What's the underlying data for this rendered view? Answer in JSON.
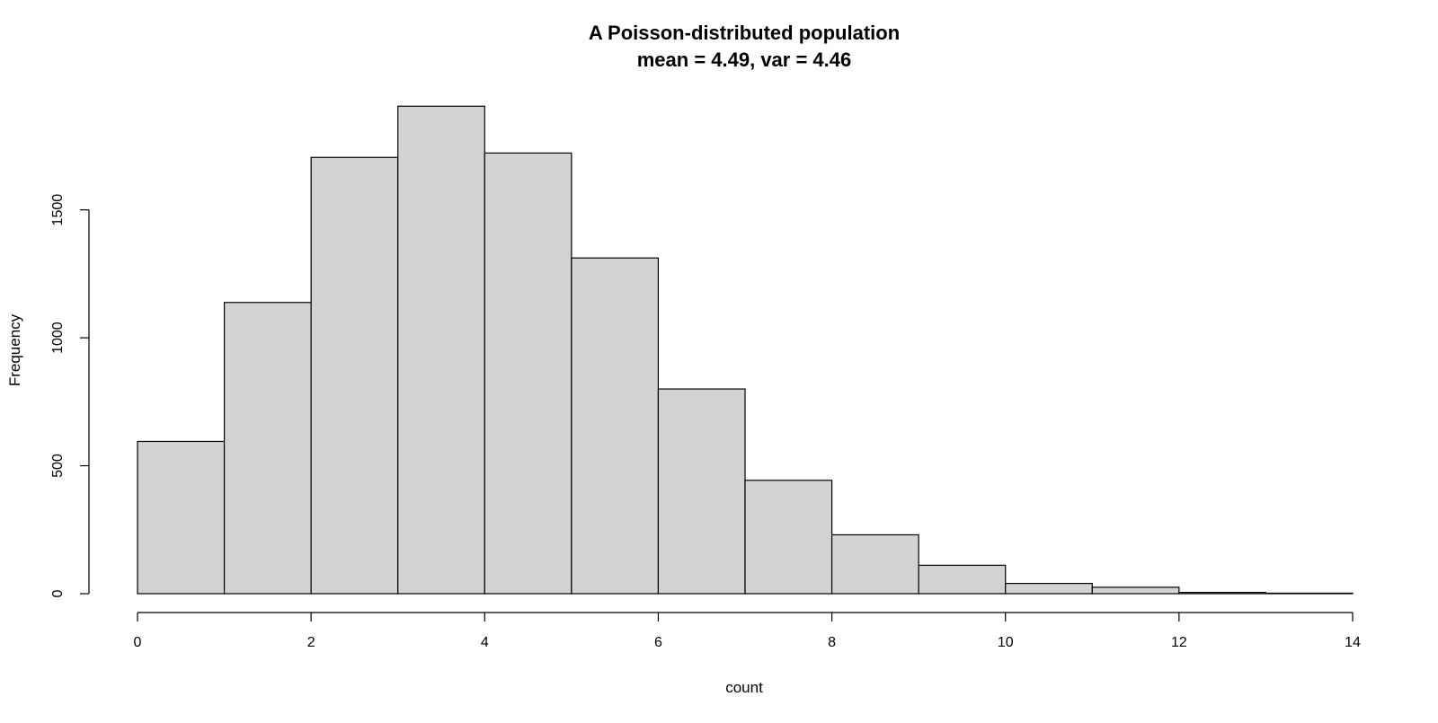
{
  "chart_data": {
    "type": "bar",
    "title": "A Poisson-distributed population",
    "subtitle": "mean = 4.49, var = 4.46",
    "xlabel": "count",
    "ylabel": "Frequency",
    "xlim": [
      0,
      14
    ],
    "ylim": [
      0,
      1900
    ],
    "x_ticks": [
      0,
      2,
      4,
      6,
      8,
      10,
      12,
      14
    ],
    "x_tick_labels": [
      "0",
      "2",
      "4",
      "6",
      "8",
      "10",
      "12",
      "14"
    ],
    "y_ticks": [
      0,
      500,
      1000,
      1500
    ],
    "y_tick_labels": [
      "0",
      "500",
      "1000",
      "1500"
    ],
    "bin_edges": [
      0,
      1,
      2,
      3,
      4,
      5,
      6,
      7,
      8,
      9,
      10,
      11,
      12,
      13,
      14
    ],
    "values": [
      595,
      1138,
      1705,
      1905,
      1722,
      1312,
      800,
      443,
      230,
      111,
      40,
      25,
      5,
      2
    ],
    "grid": false,
    "legend": "none",
    "bar_fill": "#d3d3d3",
    "bar_stroke": "#000000"
  }
}
